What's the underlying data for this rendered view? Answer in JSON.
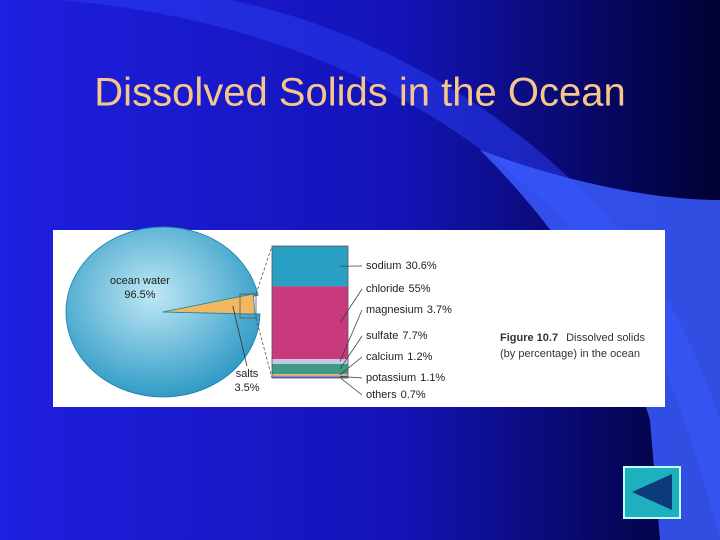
{
  "title": "Dissolved Solids in the Ocean",
  "chart_data": [
    {
      "type": "pie",
      "categories": [
        "ocean water",
        "salts"
      ],
      "values": [
        96.5,
        3.5
      ],
      "value_labels": [
        "96.5%",
        "3.5%"
      ],
      "colors": [
        "#2fa6cc",
        "#f2b760"
      ]
    },
    {
      "type": "stacked-column",
      "categories": [
        "sodium",
        "chloride",
        "magnesium",
        "sulfate",
        "calcium",
        "potassium",
        "others"
      ],
      "values": [
        30.6,
        55,
        3.7,
        7.7,
        1.2,
        1.1,
        0.7
      ],
      "value_labels": [
        "30.6%",
        "55%",
        "3.7%",
        "7.7%",
        "1.2%",
        "1.1%",
        "0.7%"
      ],
      "colors": [
        "#2a9fc4",
        "#c93a7c",
        "#c4c8ec",
        "#3f9a84",
        "#f0b070",
        "#8a8ad0",
        "#4a55b0"
      ]
    }
  ],
  "caption": {
    "figure": "Figure 10.7",
    "lines": [
      "Dissolved solids",
      "(by percentage) in the ocean"
    ]
  }
}
